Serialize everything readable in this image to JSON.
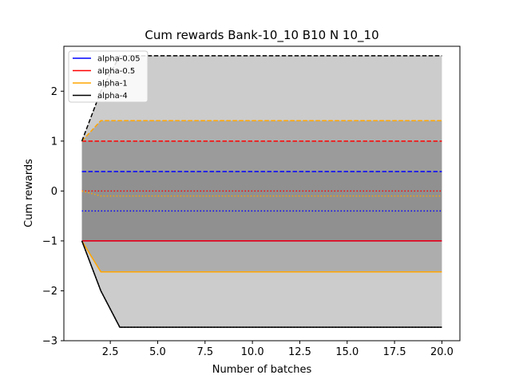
{
  "chart_data": {
    "type": "line",
    "title": "Cum rewards Bank-10_10 B10 N 10_10",
    "xlabel": "Number of batches",
    "ylabel": "Cum rewards",
    "xlim": [
      0.05,
      20.95
    ],
    "ylim": [
      -3.0,
      2.9
    ],
    "xticks": [
      2.5,
      5.0,
      7.5,
      10.0,
      12.5,
      15.0,
      17.5,
      20.0
    ],
    "xtick_labels": [
      "2.5",
      "5.0",
      "7.5",
      "10.0",
      "12.5",
      "15.0",
      "17.5",
      "20.0"
    ],
    "yticks": [
      -3,
      -2,
      -1,
      0,
      1,
      2
    ],
    "ytick_labels": [
      "−3",
      "−2",
      "−1",
      "0",
      "1",
      "2"
    ],
    "grid": false,
    "legend_position": "top-left",
    "x": [
      1,
      2,
      3,
      4,
      5,
      6,
      7,
      8,
      9,
      10,
      11,
      12,
      13,
      14,
      15,
      16,
      17,
      18,
      19,
      20
    ],
    "series": [
      {
        "name": "alpha-0.05",
        "color": "#0000ff",
        "mean": [
          -0.4,
          -0.4,
          -0.4,
          -0.4,
          -0.4,
          -0.4,
          -0.4,
          -0.4,
          -0.4,
          -0.4,
          -0.4,
          -0.4,
          -0.4,
          -0.4,
          -0.4,
          -0.4,
          -0.4,
          -0.4,
          -0.4,
          -0.4
        ],
        "lower": [
          -1,
          -1,
          -1,
          -1,
          -1,
          -1,
          -1,
          -1,
          -1,
          -1,
          -1,
          -1,
          -1,
          -1,
          -1,
          -1,
          -1,
          -1,
          -1,
          -1
        ],
        "upper": [
          0.39,
          0.39,
          0.39,
          0.39,
          0.39,
          0.39,
          0.39,
          0.39,
          0.39,
          0.39,
          0.39,
          0.39,
          0.39,
          0.39,
          0.39,
          0.39,
          0.39,
          0.39,
          0.39,
          0.39
        ]
      },
      {
        "name": "alpha-0.5",
        "color": "#ff0000",
        "mean": [
          0,
          0,
          0,
          0,
          0,
          0,
          0,
          0,
          0,
          0,
          0,
          0,
          0,
          0,
          0,
          0,
          0,
          0,
          0,
          0
        ],
        "lower": [
          -1,
          -1,
          -1,
          -1,
          -1,
          -1,
          -1,
          -1,
          -1,
          -1,
          -1,
          -1,
          -1,
          -1,
          -1,
          -1,
          -1,
          -1,
          -1,
          -1
        ],
        "upper": [
          1,
          1,
          1,
          1,
          1,
          1,
          1,
          1,
          1,
          1,
          1,
          1,
          1,
          1,
          1,
          1,
          1,
          1,
          1,
          1
        ]
      },
      {
        "name": "alpha-1",
        "color": "#ffa500",
        "mean": [
          0,
          -0.1,
          -0.1,
          -0.1,
          -0.1,
          -0.1,
          -0.1,
          -0.1,
          -0.1,
          -0.1,
          -0.1,
          -0.1,
          -0.1,
          -0.1,
          -0.1,
          -0.1,
          -0.1,
          -0.1,
          -0.1,
          -0.1
        ],
        "lower": [
          -1,
          -1.62,
          -1.62,
          -1.62,
          -1.62,
          -1.62,
          -1.62,
          -1.62,
          -1.62,
          -1.62,
          -1.62,
          -1.62,
          -1.62,
          -1.62,
          -1.62,
          -1.62,
          -1.62,
          -1.62,
          -1.62,
          -1.62
        ],
        "upper": [
          1,
          1.41,
          1.41,
          1.41,
          1.41,
          1.41,
          1.41,
          1.41,
          1.41,
          1.41,
          1.41,
          1.41,
          1.41,
          1.41,
          1.41,
          1.41,
          1.41,
          1.41,
          1.41,
          1.41
        ]
      },
      {
        "name": "alpha-4",
        "color": "#000000",
        "mean": [
          -1,
          -2,
          -2.73,
          -2.73,
          -2.73,
          -2.73,
          -2.73,
          -2.73,
          -2.73,
          -2.73,
          -2.73,
          -2.73,
          -2.73,
          -2.73,
          -2.73,
          -2.73,
          -2.73,
          -2.73,
          -2.73,
          -2.73
        ],
        "lower": [
          -1,
          -2,
          -2.73,
          -2.73,
          -2.73,
          -2.73,
          -2.73,
          -2.73,
          -2.73,
          -2.73,
          -2.73,
          -2.73,
          -2.73,
          -2.73,
          -2.73,
          -2.73,
          -2.73,
          -2.73,
          -2.73,
          -2.73
        ],
        "upper": [
          1,
          2,
          2.71,
          2.71,
          2.71,
          2.71,
          2.71,
          2.71,
          2.71,
          2.71,
          2.71,
          2.71,
          2.71,
          2.71,
          2.71,
          2.71,
          2.71,
          2.71,
          2.71,
          2.71
        ]
      }
    ],
    "band_color": "#808080"
  }
}
